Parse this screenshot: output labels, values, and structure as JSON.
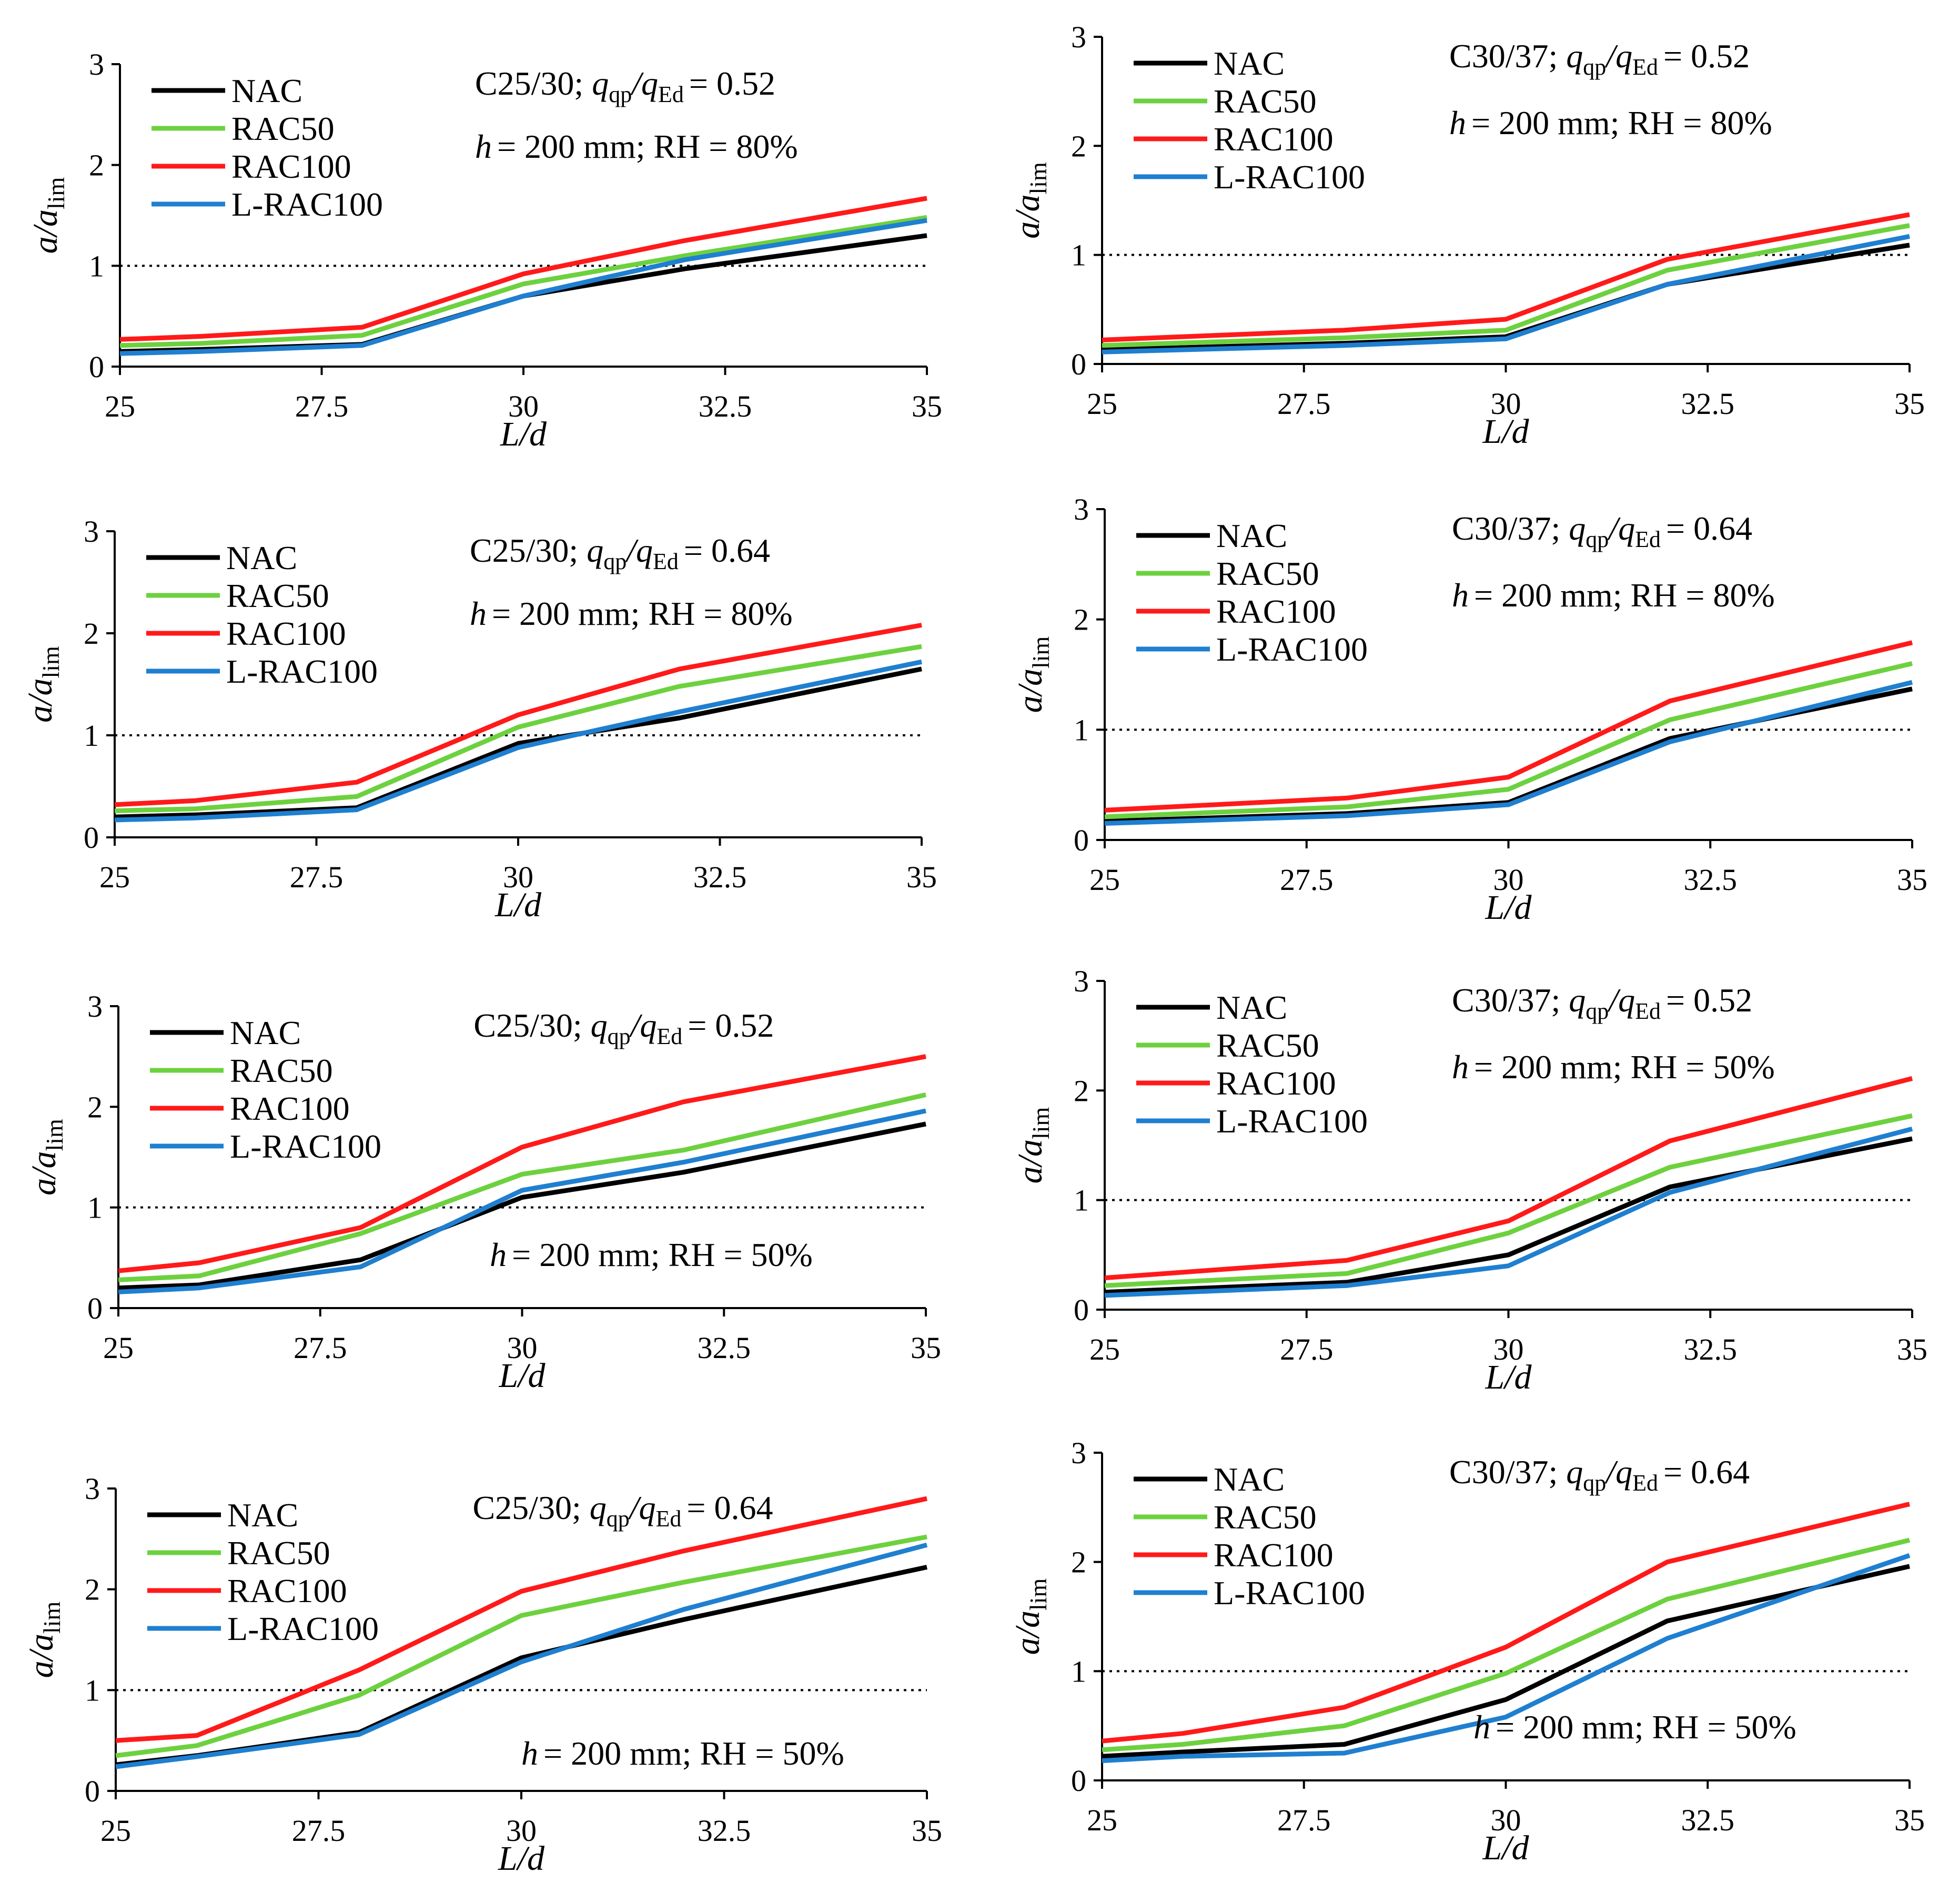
{
  "figure": {
    "reference_line": 1
  },
  "chart_data": [
    {
      "type": "line",
      "panel": "row1-left",
      "ylabel_main": "a/a",
      "ylabel_sub": "lim",
      "xlabel": "L/d",
      "xlim": [
        25,
        35
      ],
      "ylim": [
        0,
        3
      ],
      "xticks": [
        "25",
        "27.5",
        "30",
        "32.5",
        "35"
      ],
      "yticks": [
        "0",
        "1",
        "2",
        "3"
      ],
      "legend_location": "top-left",
      "title_location": "top-center",
      "conditions_location": "top-center",
      "title": {
        "grade": "C25/30;",
        "ratio_value": "= 0.52"
      },
      "conditions": "= 200 mm; RH = 80%",
      "x": [
        25,
        26,
        28,
        30,
        32,
        35
      ],
      "series": [
        {
          "name": "NAC",
          "color": "#000000",
          "values": [
            0.15,
            0.17,
            0.22,
            0.7,
            0.97,
            1.3
          ]
        },
        {
          "name": "RAC50",
          "color": "#6dd13f",
          "values": [
            0.21,
            0.23,
            0.31,
            0.82,
            1.1,
            1.48
          ]
        },
        {
          "name": "RAC100",
          "color": "#ff1a1a",
          "values": [
            0.27,
            0.3,
            0.39,
            0.92,
            1.25,
            1.67
          ]
        },
        {
          "name": "L-RAC100",
          "color": "#1f7fd0",
          "values": [
            0.13,
            0.15,
            0.21,
            0.7,
            1.06,
            1.45
          ]
        }
      ]
    },
    {
      "type": "line",
      "panel": "row1-right",
      "ylabel_main": "a/a",
      "ylabel_sub": "lim",
      "xlabel": "L/d",
      "xlim": [
        25,
        35
      ],
      "ylim": [
        0,
        3
      ],
      "xticks": [
        "25",
        "27.5",
        "30",
        "32.5",
        "35"
      ],
      "yticks": [
        "0",
        "1",
        "2",
        "3"
      ],
      "legend_location": "top-left",
      "title_location": "top-right",
      "conditions_location": "top-right",
      "title": {
        "grade": "C30/37;",
        "ratio_value": "= 0.52"
      },
      "conditions": "= 200 mm; RH = 80%",
      "x": [
        25,
        28,
        30,
        32,
        35
      ],
      "series": [
        {
          "name": "NAC",
          "color": "#000000",
          "values": [
            0.13,
            0.19,
            0.25,
            0.73,
            1.09
          ]
        },
        {
          "name": "RAC50",
          "color": "#6dd13f",
          "values": [
            0.17,
            0.24,
            0.31,
            0.86,
            1.27
          ]
        },
        {
          "name": "RAC100",
          "color": "#ff1a1a",
          "values": [
            0.22,
            0.31,
            0.41,
            0.96,
            1.37
          ]
        },
        {
          "name": "L-RAC100",
          "color": "#1f7fd0",
          "values": [
            0.11,
            0.17,
            0.23,
            0.73,
            1.17
          ]
        }
      ]
    },
    {
      "type": "line",
      "panel": "row2-left",
      "ylabel_main": "a/a",
      "ylabel_sub": "lim",
      "xlabel": "L/d",
      "xlim": [
        25,
        35
      ],
      "ylim": [
        0,
        3
      ],
      "xticks": [
        "25",
        "27.5",
        "30",
        "32.5",
        "35"
      ],
      "yticks": [
        "0",
        "1",
        "2",
        "3"
      ],
      "legend_location": "top-left",
      "title_location": "top-center",
      "conditions_location": "top-center",
      "title": {
        "grade": "C25/30;",
        "ratio_value": "= 0.64"
      },
      "conditions": "= 200 mm; RH = 80%",
      "x": [
        25,
        26,
        28,
        30,
        32,
        35
      ],
      "series": [
        {
          "name": "NAC",
          "color": "#000000",
          "values": [
            0.2,
            0.22,
            0.29,
            0.92,
            1.17,
            1.65
          ]
        },
        {
          "name": "RAC50",
          "color": "#6dd13f",
          "values": [
            0.26,
            0.28,
            0.4,
            1.08,
            1.48,
            1.87
          ]
        },
        {
          "name": "RAC100",
          "color": "#ff1a1a",
          "values": [
            0.32,
            0.36,
            0.54,
            1.2,
            1.65,
            2.08
          ]
        },
        {
          "name": "L-RAC100",
          "color": "#1f7fd0",
          "values": [
            0.17,
            0.19,
            0.27,
            0.88,
            1.23,
            1.72
          ]
        }
      ]
    },
    {
      "type": "line",
      "panel": "row2-right",
      "ylabel_main": "a/a",
      "ylabel_sub": "lim",
      "xlabel": "L/d",
      "xlim": [
        25,
        35
      ],
      "ylim": [
        0,
        3
      ],
      "xticks": [
        "25",
        "27.5",
        "30",
        "32.5",
        "35"
      ],
      "yticks": [
        "0",
        "1",
        "2",
        "3"
      ],
      "legend_location": "top-left",
      "title_location": "top-right",
      "conditions_location": "top-right",
      "title": {
        "grade": "C30/37;",
        "ratio_value": "= 0.64"
      },
      "conditions": "= 200 mm; RH = 80%",
      "x": [
        25,
        28,
        30,
        32,
        35
      ],
      "series": [
        {
          "name": "NAC",
          "color": "#000000",
          "values": [
            0.17,
            0.24,
            0.34,
            0.92,
            1.37
          ]
        },
        {
          "name": "RAC50",
          "color": "#6dd13f",
          "values": [
            0.21,
            0.3,
            0.46,
            1.09,
            1.6
          ]
        },
        {
          "name": "RAC100",
          "color": "#ff1a1a",
          "values": [
            0.27,
            0.38,
            0.57,
            1.26,
            1.79
          ]
        },
        {
          "name": "L-RAC100",
          "color": "#1f7fd0",
          "values": [
            0.15,
            0.22,
            0.32,
            0.89,
            1.43
          ]
        }
      ]
    },
    {
      "type": "line",
      "panel": "row3-left",
      "ylabel_main": "a/a",
      "ylabel_sub": "lim",
      "xlabel": "L/d",
      "xlim": [
        25,
        35
      ],
      "ylim": [
        0,
        3
      ],
      "xticks": [
        "25",
        "27.5",
        "30",
        "32.5",
        "35"
      ],
      "yticks": [
        "0",
        "1",
        "2",
        "3"
      ],
      "legend_location": "top-left",
      "title_location": "top-center",
      "conditions_location": "bottom-center",
      "title": {
        "grade": "C25/30;",
        "ratio_value": "= 0.52"
      },
      "conditions": "= 200 mm; RH = 50%",
      "x": [
        25,
        26,
        28,
        30,
        32,
        35
      ],
      "series": [
        {
          "name": "NAC",
          "color": "#000000",
          "values": [
            0.2,
            0.23,
            0.48,
            1.1,
            1.35,
            1.83
          ]
        },
        {
          "name": "RAC50",
          "color": "#6dd13f",
          "values": [
            0.28,
            0.32,
            0.74,
            1.33,
            1.57,
            2.12
          ]
        },
        {
          "name": "RAC100",
          "color": "#ff1a1a",
          "values": [
            0.37,
            0.45,
            0.8,
            1.6,
            2.05,
            2.5
          ]
        },
        {
          "name": "L-RAC100",
          "color": "#1f7fd0",
          "values": [
            0.16,
            0.2,
            0.41,
            1.17,
            1.45,
            1.96
          ]
        }
      ]
    },
    {
      "type": "line",
      "panel": "row3-right",
      "ylabel_main": "a/a",
      "ylabel_sub": "lim",
      "xlabel": "L/d",
      "xlim": [
        25,
        35
      ],
      "ylim": [
        0,
        3
      ],
      "xticks": [
        "25",
        "27.5",
        "30",
        "32.5",
        "35"
      ],
      "yticks": [
        "0",
        "1",
        "2",
        "3"
      ],
      "legend_location": "top-left",
      "title_location": "top-right",
      "conditions_location": "top-right",
      "title": {
        "grade": "C30/37;",
        "ratio_value": "= 0.52"
      },
      "conditions": "= 200 mm; RH = 50%",
      "x": [
        25,
        28,
        30,
        32,
        35
      ],
      "series": [
        {
          "name": "NAC",
          "color": "#000000",
          "values": [
            0.16,
            0.25,
            0.5,
            1.12,
            1.56
          ]
        },
        {
          "name": "RAC50",
          "color": "#6dd13f",
          "values": [
            0.22,
            0.33,
            0.7,
            1.3,
            1.77
          ]
        },
        {
          "name": "RAC100",
          "color": "#ff1a1a",
          "values": [
            0.29,
            0.45,
            0.81,
            1.54,
            2.11
          ]
        },
        {
          "name": "L-RAC100",
          "color": "#1f7fd0",
          "values": [
            0.13,
            0.22,
            0.4,
            1.07,
            1.65
          ]
        }
      ]
    },
    {
      "type": "line",
      "panel": "row4-left",
      "ylabel_main": "a/a",
      "ylabel_sub": "lim",
      "xlabel": "L/d",
      "xlim": [
        25,
        35
      ],
      "ylim": [
        0,
        3
      ],
      "xticks": [
        "25",
        "27.5",
        "30",
        "32.5",
        "35"
      ],
      "yticks": [
        "0",
        "1",
        "2",
        "3"
      ],
      "legend_location": "top-left",
      "title_location": "top-center",
      "conditions_location": "bottom-right",
      "title": {
        "grade": "C25/30;",
        "ratio_value": "= 0.64"
      },
      "conditions": "= 200 mm; RH = 50%",
      "x": [
        25,
        26,
        28,
        30,
        32,
        35
      ],
      "series": [
        {
          "name": "NAC",
          "color": "#000000",
          "values": [
            0.26,
            0.35,
            0.58,
            1.32,
            1.7,
            2.22
          ]
        },
        {
          "name": "RAC50",
          "color": "#6dd13f",
          "values": [
            0.35,
            0.45,
            0.95,
            1.74,
            2.07,
            2.52
          ]
        },
        {
          "name": "RAC100",
          "color": "#ff1a1a",
          "values": [
            0.5,
            0.55,
            1.2,
            1.98,
            2.38,
            2.9
          ]
        },
        {
          "name": "L-RAC100",
          "color": "#1f7fd0",
          "values": [
            0.24,
            0.34,
            0.56,
            1.28,
            1.8,
            2.44
          ]
        }
      ]
    },
    {
      "type": "line",
      "panel": "row4-right",
      "ylabel_main": "a/a",
      "ylabel_sub": "lim",
      "xlabel": "L/d",
      "xlim": [
        25,
        35
      ],
      "ylim": [
        0,
        3
      ],
      "xticks": [
        "25",
        "27.5",
        "30",
        "32.5",
        "35"
      ],
      "yticks": [
        "0",
        "1",
        "2",
        "3"
      ],
      "legend_location": "top-left",
      "title_location": "top-right",
      "conditions_location": "bottom-center",
      "title": {
        "grade": "C30/37;",
        "ratio_value": "= 0.64"
      },
      "conditions": "= 200 mm; RH = 50%",
      "x": [
        25,
        26,
        28,
        30,
        32,
        35
      ],
      "series": [
        {
          "name": "NAC",
          "color": "#000000",
          "values": [
            0.22,
            0.26,
            0.33,
            0.74,
            1.46,
            1.96
          ]
        },
        {
          "name": "RAC50",
          "color": "#6dd13f",
          "values": [
            0.28,
            0.33,
            0.5,
            0.98,
            1.66,
            2.2
          ]
        },
        {
          "name": "RAC100",
          "color": "#ff1a1a",
          "values": [
            0.36,
            0.43,
            0.67,
            1.22,
            2.0,
            2.53
          ]
        },
        {
          "name": "L-RAC100",
          "color": "#1f7fd0",
          "values": [
            0.18,
            0.22,
            0.25,
            0.58,
            1.3,
            2.06
          ]
        }
      ]
    }
  ]
}
